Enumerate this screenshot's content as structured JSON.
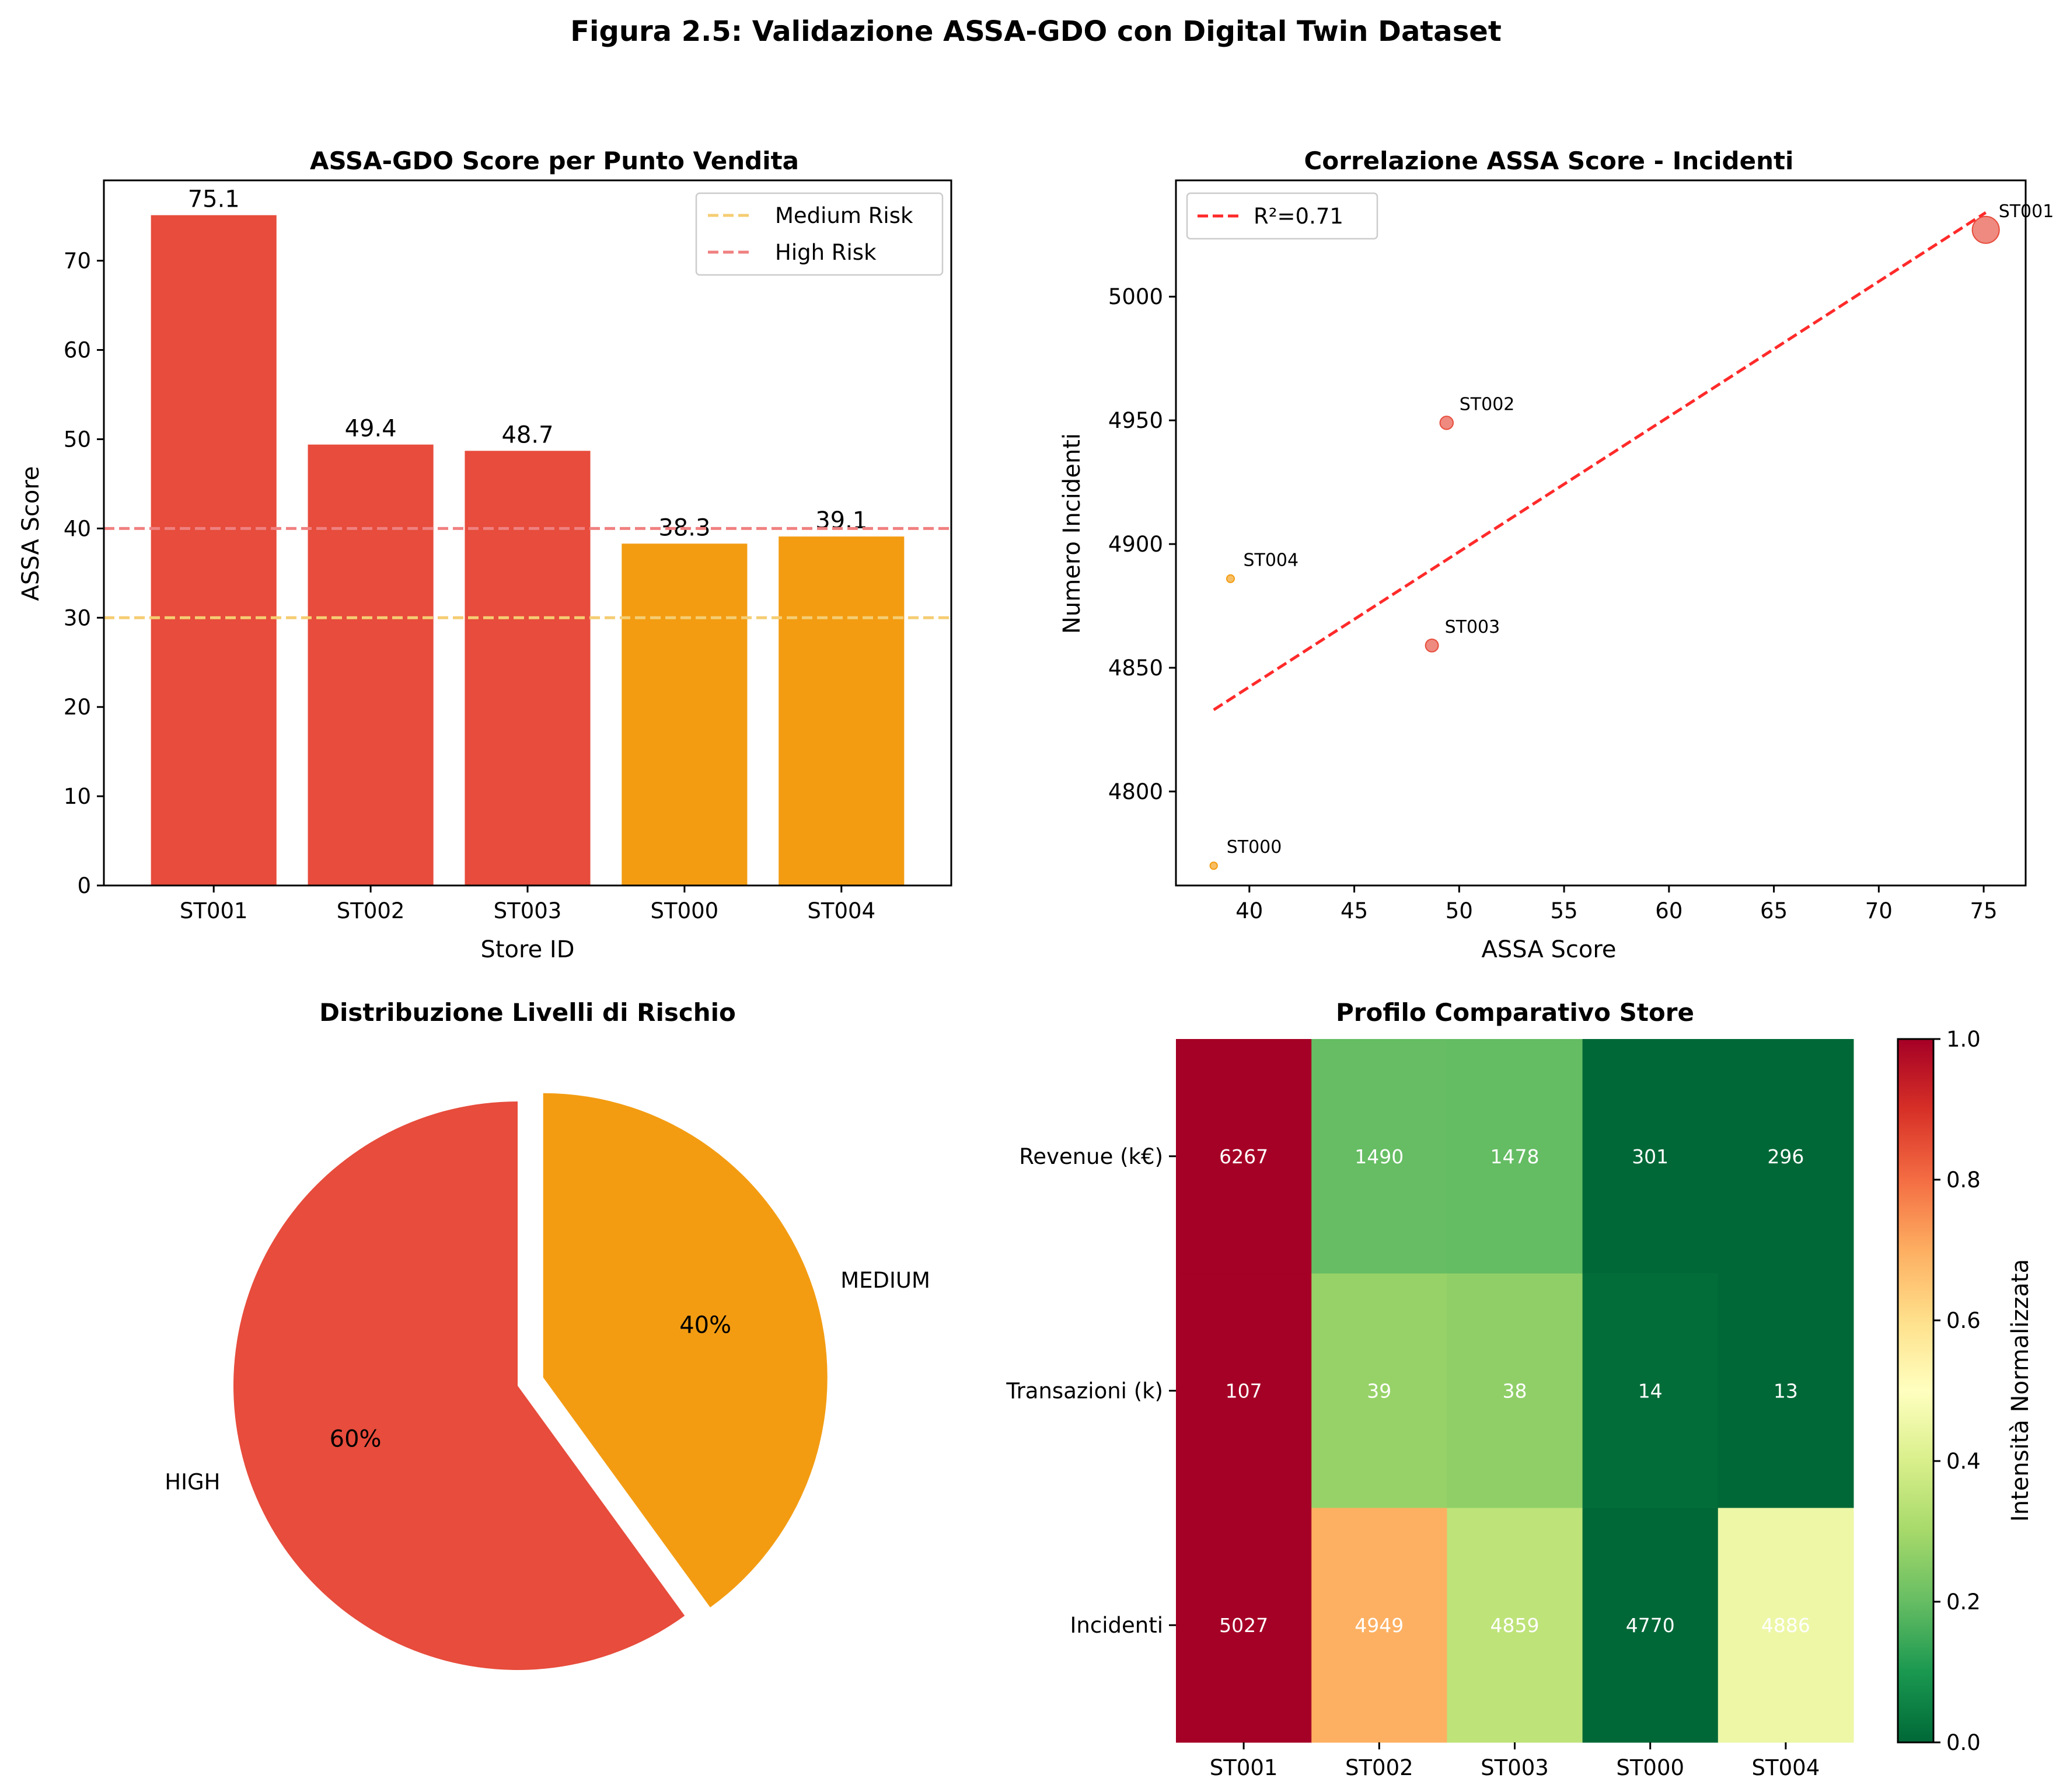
{
  "figure": {
    "title": "Figura 2.5: Validazione ASSA-GDO con Digital Twin Dataset"
  },
  "colors": {
    "high": "#e74c3c",
    "medium": "#f39c12",
    "medium_line": "#f5cd73",
    "high_line": "#f08080",
    "fit_line": "#ff2a2a"
  },
  "chart_data": [
    {
      "type": "bar",
      "title": "ASSA-GDO Score per Punto Vendita",
      "xlabel": "Store ID",
      "ylabel": "ASSA Score",
      "categories": [
        "ST001",
        "ST002",
        "ST003",
        "ST000",
        "ST004"
      ],
      "values": [
        75.1,
        49.4,
        48.7,
        38.3,
        39.1
      ],
      "value_labels": [
        "75.1",
        "49.4",
        "48.7",
        "38.3",
        "39.1"
      ],
      "risk": [
        "high",
        "high",
        "high",
        "medium",
        "medium"
      ],
      "ylim": [
        0,
        79
      ],
      "yticks": [
        0,
        10,
        20,
        30,
        40,
        50,
        60,
        70
      ],
      "reference_lines": [
        {
          "name": "Medium Risk",
          "y": 30,
          "color": "#f5cd73"
        },
        {
          "name": "High Risk",
          "y": 40,
          "color": "#f08080"
        }
      ],
      "legend": "top-right"
    },
    {
      "type": "scatter",
      "title": "Correlazione ASSA Score - Incidenti",
      "xlabel": "ASSA Score",
      "ylabel": "Numero Incidenti",
      "points": [
        {
          "label": "ST001",
          "x": 75.1,
          "y": 5027,
          "risk": "high"
        },
        {
          "label": "ST002",
          "x": 49.4,
          "y": 4949,
          "risk": "high"
        },
        {
          "label": "ST003",
          "x": 48.7,
          "y": 4859,
          "risk": "high"
        },
        {
          "label": "ST000",
          "x": 38.3,
          "y": 4770,
          "risk": "medium"
        },
        {
          "label": "ST004",
          "x": 39.1,
          "y": 4886,
          "risk": "medium"
        }
      ],
      "fit": {
        "name": "R²=0.71",
        "x": [
          38.3,
          75.1
        ],
        "y": [
          4833,
          5034
        ]
      },
      "xlim": [
        36.5,
        77.0
      ],
      "ylim": [
        4762,
        5047
      ],
      "xticks": [
        40,
        45,
        50,
        55,
        60,
        65,
        70,
        75
      ],
      "yticks": [
        4800,
        4850,
        4900,
        4950,
        5000
      ],
      "legend": "top-left"
    },
    {
      "type": "pie",
      "title": "Distribuzione Livelli di Rischio",
      "slices": [
        {
          "label": "HIGH",
          "value": 60,
          "pct": "60%",
          "risk": "high"
        },
        {
          "label": "MEDIUM",
          "value": 40,
          "pct": "40%",
          "risk": "medium"
        }
      ]
    },
    {
      "type": "heatmap",
      "title": "Profilo Comparativo Store",
      "columns": [
        "ST001",
        "ST002",
        "ST003",
        "ST000",
        "ST004"
      ],
      "rows": [
        "Revenue (k€)",
        "Transazioni (k)",
        "Incidenti"
      ],
      "values": [
        [
          6267,
          1490,
          1478,
          301,
          296
        ],
        [
          107,
          39,
          38,
          14,
          13
        ],
        [
          5027,
          4949,
          4859,
          4770,
          4886
        ]
      ],
      "colorbar": {
        "label": "Intensità Normalizzata",
        "ticks": [
          "0.0",
          "0.2",
          "0.4",
          "0.6",
          "0.8",
          "1.0"
        ],
        "range": [
          0,
          1
        ]
      }
    }
  ]
}
